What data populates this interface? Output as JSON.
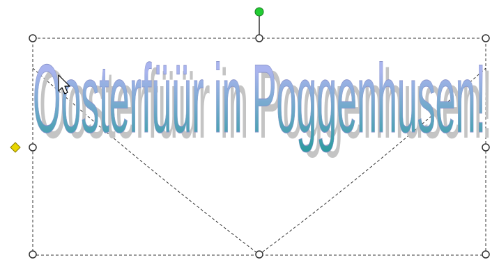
{
  "wordart": {
    "text": "Oosterfüür in Poggenhusen!",
    "fill_top_color": "#a9b4ee",
    "fill_bottom_color": "#2a9a9e",
    "shadow_color": "#c4c4c4",
    "outline_color": "#8a94cc"
  },
  "selection": {
    "outline_color": "#333333",
    "handle_fill": "#ffffff",
    "handle_stroke": "#333333",
    "rotate_handle_color": "#22cc33",
    "adjust_handle_color": "#e8d600",
    "warp_path_color": "#333333"
  },
  "icons": {
    "cursor": "arrow-cursor-icon",
    "rotate": "rotate-handle-icon",
    "adjust": "adjust-handle-icon"
  }
}
